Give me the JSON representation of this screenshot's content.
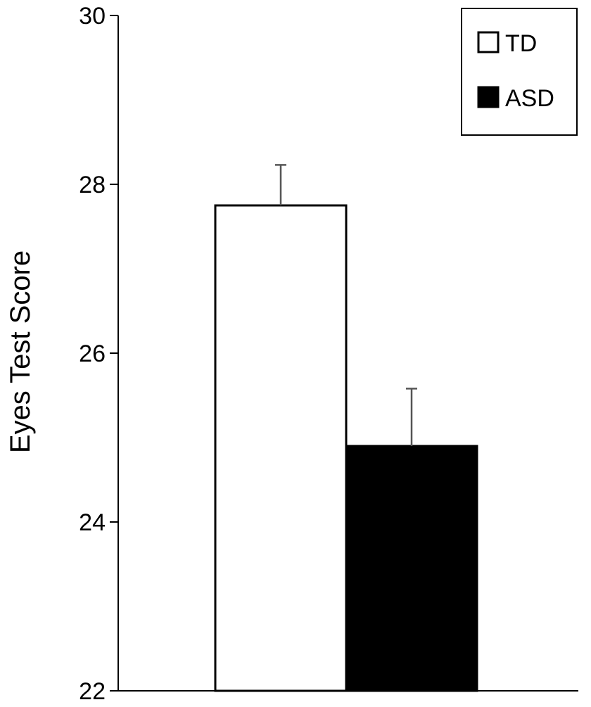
{
  "chart_data": {
    "type": "bar",
    "title": "",
    "xlabel": "",
    "ylabel": "Eyes Test Score",
    "ylim": [
      22,
      30
    ],
    "yticks": [
      22,
      24,
      26,
      28,
      30
    ],
    "grid": false,
    "legend_position": "top-right",
    "series": [
      {
        "name": "TD",
        "value": 27.75,
        "error": 0.48,
        "fill": "#ffffff"
      },
      {
        "name": "ASD",
        "value": 24.9,
        "error": 0.68,
        "fill": "#000000"
      }
    ]
  },
  "colors": {
    "axis": "#000000",
    "error_bar": "#555555",
    "bar_outline": "#000000"
  }
}
